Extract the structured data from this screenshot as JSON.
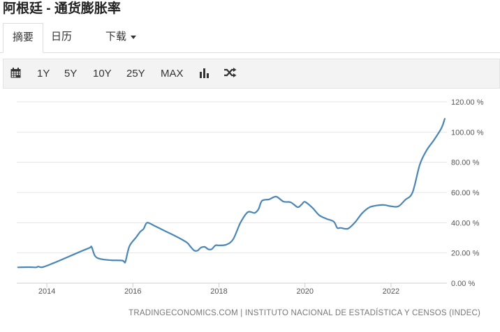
{
  "page": {
    "title": "阿根廷 - 通货膨胀率"
  },
  "tabs": [
    {
      "label": "摘要"
    },
    {
      "label": "日历"
    },
    {
      "label": "下载"
    }
  ],
  "toolbar": {
    "ranges": [
      "1Y",
      "5Y",
      "10Y",
      "25Y",
      "MAX"
    ],
    "icons": [
      "calendar-icon",
      "bar-chart-icon",
      "shuffle-icon"
    ]
  },
  "colors": {
    "line": "#4a86b5",
    "grid": "#e6e6e6",
    "axis_text": "#555555"
  },
  "chart_data": {
    "type": "line",
    "title": "",
    "xlabel": "",
    "ylabel": "",
    "ylim": [
      0,
      120
    ],
    "yticks": [
      0,
      20,
      40,
      60,
      80,
      100,
      120
    ],
    "ytick_labels": [
      "0.00 %",
      "20.00 %",
      "40.00 %",
      "60.00 %",
      "80.00 %",
      "100.00 %",
      "120.00 %"
    ],
    "xlim": [
      2013.3,
      2023.3
    ],
    "xticks": [
      2014,
      2016,
      2018,
      2020,
      2022
    ],
    "xtick_labels": [
      "2014",
      "2016",
      "2018",
      "2020",
      "2022"
    ],
    "grid": true,
    "legend": "none",
    "series": [
      {
        "unit": "%",
        "x": [
          2013.33,
          2013.58,
          2013.75,
          2013.8,
          2013.9,
          2014.17,
          2014.5,
          2014.83,
          2015.0,
          2015.04,
          2015.12,
          2015.25,
          2015.5,
          2015.75,
          2015.8,
          2015.83,
          2015.92,
          2016.08,
          2016.17,
          2016.25,
          2016.33,
          2016.5,
          2016.75,
          2017.0,
          2017.25,
          2017.33,
          2017.42,
          2017.5,
          2017.58,
          2017.67,
          2017.75,
          2017.83,
          2017.92,
          2018.0,
          2018.17,
          2018.33,
          2018.5,
          2018.67,
          2018.83,
          2018.92,
          2019.0,
          2019.17,
          2019.33,
          2019.5,
          2019.67,
          2019.83,
          2019.92,
          2020.0,
          2020.17,
          2020.33,
          2020.5,
          2020.67,
          2020.75,
          2020.83,
          2021.0,
          2021.17,
          2021.33,
          2021.5,
          2021.67,
          2021.83,
          2022.0,
          2022.17,
          2022.33,
          2022.5,
          2022.67,
          2022.83,
          2023.0,
          2023.17,
          2023.25
        ],
        "y": [
          10.5,
          10.6,
          10.5,
          11.0,
          10.6,
          13.5,
          17.5,
          21.5,
          23.5,
          24.0,
          18.0,
          16.0,
          15.2,
          15.0,
          14.0,
          14.5,
          24.5,
          30.5,
          34.0,
          36.0,
          40.0,
          38.0,
          34.5,
          31.0,
          27.0,
          24.5,
          21.7,
          21.5,
          23.5,
          24.0,
          22.5,
          22.5,
          25.0,
          25.0,
          25.5,
          29.0,
          40.0,
          47.0,
          46.5,
          49.0,
          54.5,
          55.5,
          57.3,
          54.0,
          53.5,
          50.3,
          52.0,
          53.8,
          50.0,
          45.0,
          42.6,
          40.7,
          36.6,
          36.6,
          36.1,
          40.5,
          46.3,
          50.2,
          51.4,
          51.8,
          50.9,
          50.8,
          55.1,
          60.0,
          78.5,
          88.0,
          94.8,
          102.5,
          108.8
        ]
      }
    ]
  },
  "source": {
    "text": "TRADINGECONOMICS.COM | INSTITUTO NACIONAL DE ESTADÍSTICA Y CENSOS (INDEC)"
  }
}
